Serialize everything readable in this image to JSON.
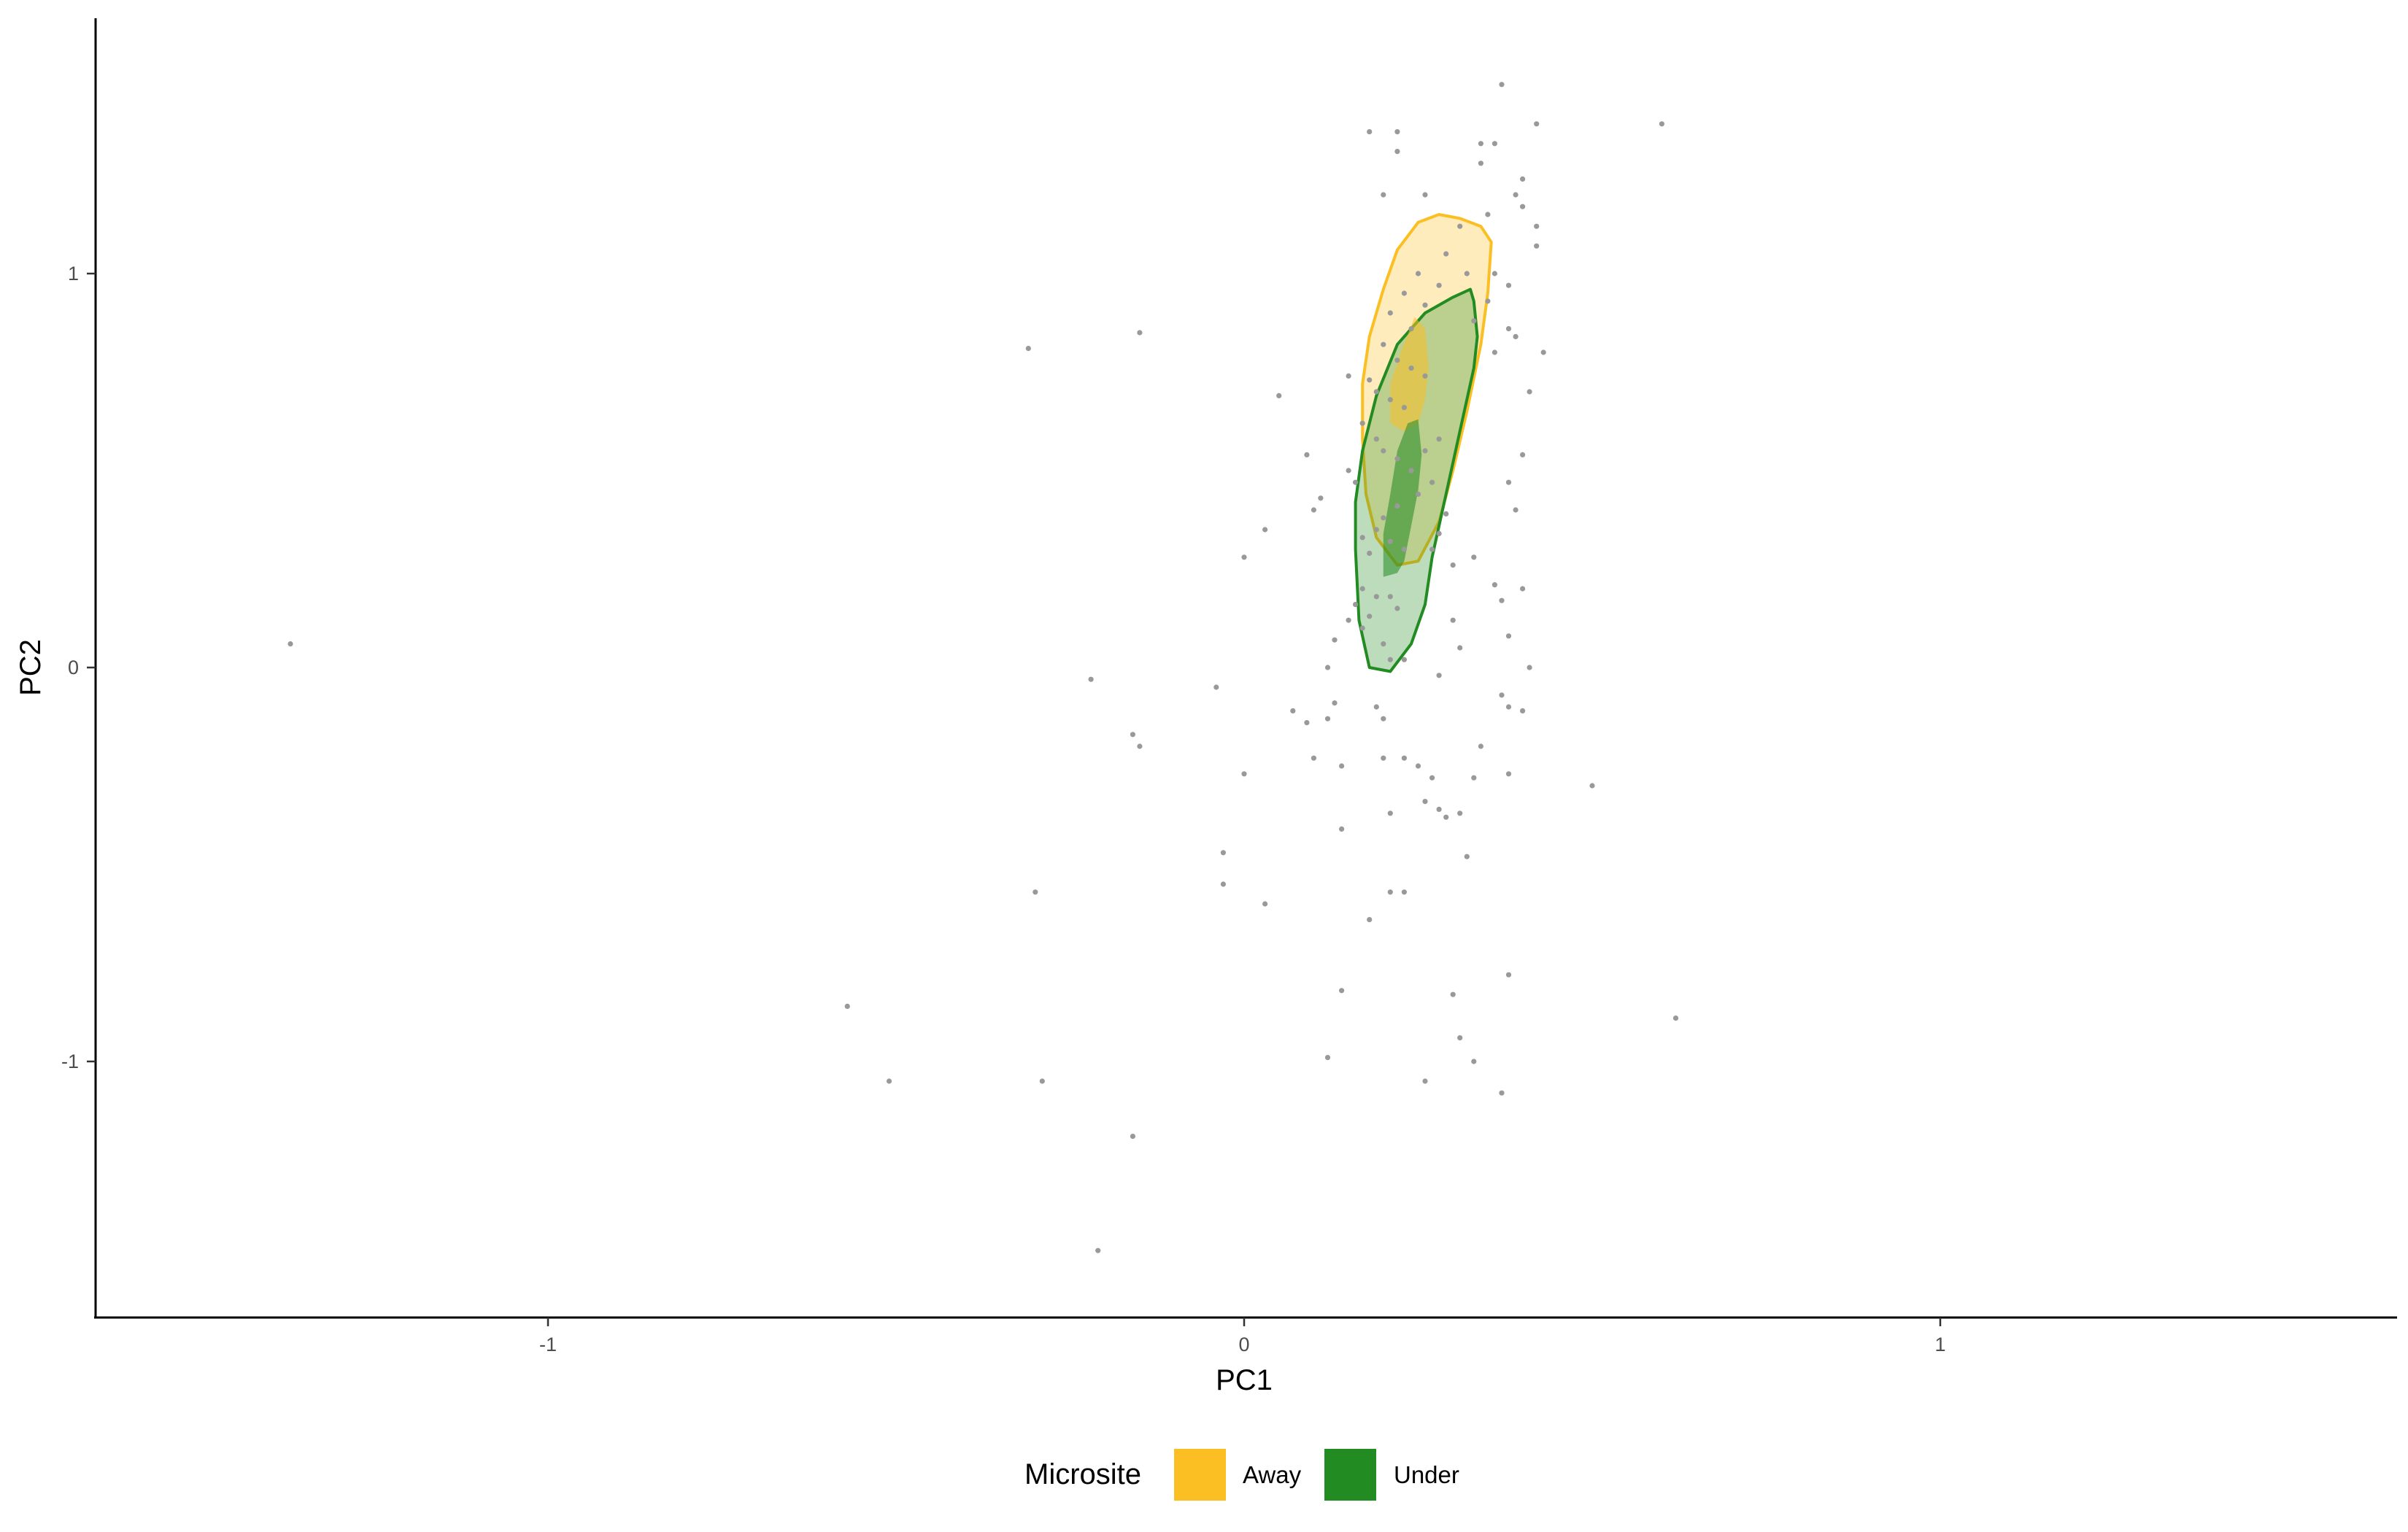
{
  "chart_data": {
    "type": "scatter",
    "xlabel": "PC1",
    "ylabel": "PC2",
    "xlim": [
      -1.65,
      1.65
    ],
    "ylim": [
      -1.65,
      1.65
    ],
    "x_ticks": [
      {
        "value": -1,
        "label": "-1"
      },
      {
        "value": 0,
        "label": "0"
      },
      {
        "value": 1,
        "label": "1"
      }
    ],
    "y_ticks": [
      {
        "value": -1,
        "label": "-1"
      },
      {
        "value": 0,
        "label": "0"
      },
      {
        "value": 1,
        "label": "1"
      }
    ],
    "grid": false,
    "legend": {
      "title": "Microsite",
      "position": "bottom",
      "entries": [
        {
          "label": "Away",
          "color": "#FBBF24"
        },
        {
          "label": "Under",
          "color": "#228B22"
        }
      ]
    },
    "point_color": "#999999",
    "points": [
      [
        -1.37,
        0.06
      ],
      [
        -0.31,
        0.81
      ],
      [
        -0.15,
        0.85
      ],
      [
        -0.22,
        -0.03
      ],
      [
        -0.16,
        -0.17
      ],
      [
        -0.15,
        -0.2
      ],
      [
        -0.3,
        -0.57
      ],
      [
        -0.29,
        -1.05
      ],
      [
        -0.57,
        -0.86
      ],
      [
        -0.51,
        -1.05
      ],
      [
        -0.16,
        -1.19
      ],
      [
        -0.21,
        -1.48
      ],
      [
        -0.04,
        -0.05
      ],
      [
        0.0,
        0.28
      ],
      [
        0.03,
        0.35
      ],
      [
        0.05,
        0.69
      ],
      [
        0.09,
        0.54
      ],
      [
        0.1,
        0.4
      ],
      [
        0.11,
        0.43
      ],
      [
        -0.03,
        -0.47
      ],
      [
        -0.03,
        -0.55
      ],
      [
        0.03,
        -0.6
      ],
      [
        0.07,
        -0.11
      ],
      [
        0.09,
        -0.14
      ],
      [
        0.1,
        -0.23
      ],
      [
        0.12,
        -0.13
      ],
      [
        0.13,
        -0.09
      ],
      [
        0.14,
        -0.25
      ],
      [
        0.14,
        -0.41
      ],
      [
        0.14,
        -0.82
      ],
      [
        0.12,
        -0.99
      ],
      [
        0.18,
        -0.64
      ],
      [
        0.21,
        -0.57
      ],
      [
        0.23,
        -0.57
      ],
      [
        0.0,
        -0.27
      ],
      [
        0.18,
        1.36
      ],
      [
        0.22,
        1.31
      ],
      [
        0.22,
        1.36
      ],
      [
        0.2,
        1.2
      ],
      [
        0.26,
        1.2
      ],
      [
        0.37,
        1.48
      ],
      [
        0.34,
        1.33
      ],
      [
        0.36,
        1.33
      ],
      [
        0.34,
        1.28
      ],
      [
        0.42,
        1.38
      ],
      [
        0.6,
        1.38
      ],
      [
        0.4,
        1.24
      ],
      [
        0.39,
        1.2
      ],
      [
        0.4,
        1.17
      ],
      [
        0.35,
        1.15
      ],
      [
        0.42,
        1.12
      ],
      [
        0.42,
        1.07
      ],
      [
        0.31,
        1.12
      ],
      [
        0.29,
        1.05
      ],
      [
        0.32,
        1.0
      ],
      [
        0.36,
        1.0
      ],
      [
        0.38,
        0.97
      ],
      [
        0.35,
        0.93
      ],
      [
        0.33,
        0.88
      ],
      [
        0.38,
        0.86
      ],
      [
        0.39,
        0.84
      ],
      [
        0.43,
        0.8
      ],
      [
        0.36,
        0.8
      ],
      [
        0.41,
        0.7
      ],
      [
        0.28,
        0.97
      ],
      [
        0.25,
        1.0
      ],
      [
        0.23,
        0.95
      ],
      [
        0.26,
        0.92
      ],
      [
        0.21,
        0.9
      ],
      [
        0.24,
        0.86
      ],
      [
        0.2,
        0.82
      ],
      [
        0.22,
        0.78
      ],
      [
        0.24,
        0.76
      ],
      [
        0.26,
        0.74
      ],
      [
        0.18,
        0.73
      ],
      [
        0.19,
        0.7
      ],
      [
        0.21,
        0.68
      ],
      [
        0.23,
        0.66
      ],
      [
        0.15,
        0.74
      ],
      [
        0.17,
        0.62
      ],
      [
        0.19,
        0.58
      ],
      [
        0.2,
        0.55
      ],
      [
        0.22,
        0.53
      ],
      [
        0.24,
        0.5
      ],
      [
        0.26,
        0.55
      ],
      [
        0.28,
        0.58
      ],
      [
        0.27,
        0.47
      ],
      [
        0.25,
        0.44
      ],
      [
        0.22,
        0.41
      ],
      [
        0.2,
        0.38
      ],
      [
        0.19,
        0.35
      ],
      [
        0.21,
        0.32
      ],
      [
        0.23,
        0.3
      ],
      [
        0.18,
        0.29
      ],
      [
        0.17,
        0.33
      ],
      [
        0.16,
        0.47
      ],
      [
        0.15,
        0.5
      ],
      [
        0.29,
        0.39
      ],
      [
        0.28,
        0.34
      ],
      [
        0.4,
        0.54
      ],
      [
        0.38,
        0.47
      ],
      [
        0.39,
        0.4
      ],
      [
        0.33,
        0.28
      ],
      [
        0.36,
        0.21
      ],
      [
        0.4,
        0.2
      ],
      [
        0.37,
        0.17
      ],
      [
        0.38,
        0.08
      ],
      [
        0.27,
        0.3
      ],
      [
        0.3,
        0.26
      ],
      [
        0.17,
        0.2
      ],
      [
        0.19,
        0.18
      ],
      [
        0.21,
        0.18
      ],
      [
        0.22,
        0.15
      ],
      [
        0.18,
        0.13
      ],
      [
        0.17,
        0.1
      ],
      [
        0.2,
        0.06
      ],
      [
        0.21,
        0.02
      ],
      [
        0.23,
        0.02
      ],
      [
        0.16,
        0.16
      ],
      [
        0.15,
        0.12
      ],
      [
        0.13,
        0.07
      ],
      [
        0.12,
        0.0
      ],
      [
        0.19,
        -0.1
      ],
      [
        0.2,
        -0.13
      ],
      [
        0.28,
        -0.02
      ],
      [
        0.37,
        -0.07
      ],
      [
        0.38,
        -0.1
      ],
      [
        0.4,
        -0.11
      ],
      [
        0.41,
        0.0
      ],
      [
        0.38,
        -0.27
      ],
      [
        0.34,
        -0.2
      ],
      [
        0.33,
        -0.28
      ],
      [
        0.32,
        -0.48
      ],
      [
        0.3,
        -0.83
      ],
      [
        0.31,
        -0.94
      ],
      [
        0.33,
        -1.0
      ],
      [
        0.26,
        -1.05
      ],
      [
        0.37,
        -1.08
      ],
      [
        0.38,
        -0.78
      ],
      [
        0.5,
        -0.3
      ],
      [
        0.62,
        -0.89
      ],
      [
        0.2,
        -0.23
      ],
      [
        0.23,
        -0.23
      ],
      [
        0.25,
        -0.25
      ],
      [
        0.27,
        -0.28
      ],
      [
        0.26,
        -0.34
      ],
      [
        0.28,
        -0.36
      ],
      [
        0.29,
        -0.38
      ],
      [
        0.31,
        -0.37
      ],
      [
        0.21,
        -0.37
      ],
      [
        0.3,
        0.12
      ],
      [
        0.31,
        0.05
      ]
    ],
    "regions": [
      {
        "group": "Away",
        "level": "outer",
        "color": "#FBBF24",
        "polygon": [
          [
            0.17,
            0.58
          ],
          [
            0.17,
            0.72
          ],
          [
            0.18,
            0.84
          ],
          [
            0.2,
            0.96
          ],
          [
            0.22,
            1.06
          ],
          [
            0.25,
            1.13
          ],
          [
            0.28,
            1.15
          ],
          [
            0.31,
            1.14
          ],
          [
            0.34,
            1.12
          ],
          [
            0.355,
            1.08
          ],
          [
            0.35,
            0.95
          ],
          [
            0.34,
            0.82
          ],
          [
            0.32,
            0.65
          ],
          [
            0.3,
            0.5
          ],
          [
            0.28,
            0.37
          ],
          [
            0.25,
            0.27
          ],
          [
            0.22,
            0.26
          ],
          [
            0.19,
            0.33
          ],
          [
            0.175,
            0.44
          ]
        ]
      },
      {
        "group": "Under",
        "level": "outer",
        "color": "#228B22",
        "polygon": [
          [
            0.16,
            0.3
          ],
          [
            0.16,
            0.42
          ],
          [
            0.17,
            0.55
          ],
          [
            0.19,
            0.69
          ],
          [
            0.22,
            0.82
          ],
          [
            0.26,
            0.9
          ],
          [
            0.3,
            0.94
          ],
          [
            0.325,
            0.96
          ],
          [
            0.33,
            0.93
          ],
          [
            0.335,
            0.84
          ],
          [
            0.33,
            0.76
          ],
          [
            0.31,
            0.6
          ],
          [
            0.29,
            0.44
          ],
          [
            0.27,
            0.28
          ],
          [
            0.26,
            0.16
          ],
          [
            0.24,
            0.06
          ],
          [
            0.21,
            -0.01
          ],
          [
            0.18,
            0.0
          ],
          [
            0.165,
            0.12
          ]
        ]
      },
      {
        "group": "Away",
        "level": "inner",
        "color": "#FBBF24",
        "polygon": [
          [
            0.21,
            0.62
          ],
          [
            0.21,
            0.72
          ],
          [
            0.225,
            0.8
          ],
          [
            0.245,
            0.89
          ],
          [
            0.26,
            0.86
          ],
          [
            0.265,
            0.76
          ],
          [
            0.26,
            0.68
          ],
          [
            0.25,
            0.62
          ],
          [
            0.23,
            0.6
          ]
        ]
      },
      {
        "group": "Under",
        "level": "inner",
        "color": "#228B22",
        "polygon": [
          [
            0.2,
            0.23
          ],
          [
            0.2,
            0.34
          ],
          [
            0.21,
            0.44
          ],
          [
            0.22,
            0.55
          ],
          [
            0.235,
            0.62
          ],
          [
            0.25,
            0.63
          ],
          [
            0.255,
            0.54
          ],
          [
            0.25,
            0.45
          ],
          [
            0.24,
            0.36
          ],
          [
            0.23,
            0.27
          ],
          [
            0.22,
            0.24
          ]
        ]
      }
    ]
  }
}
